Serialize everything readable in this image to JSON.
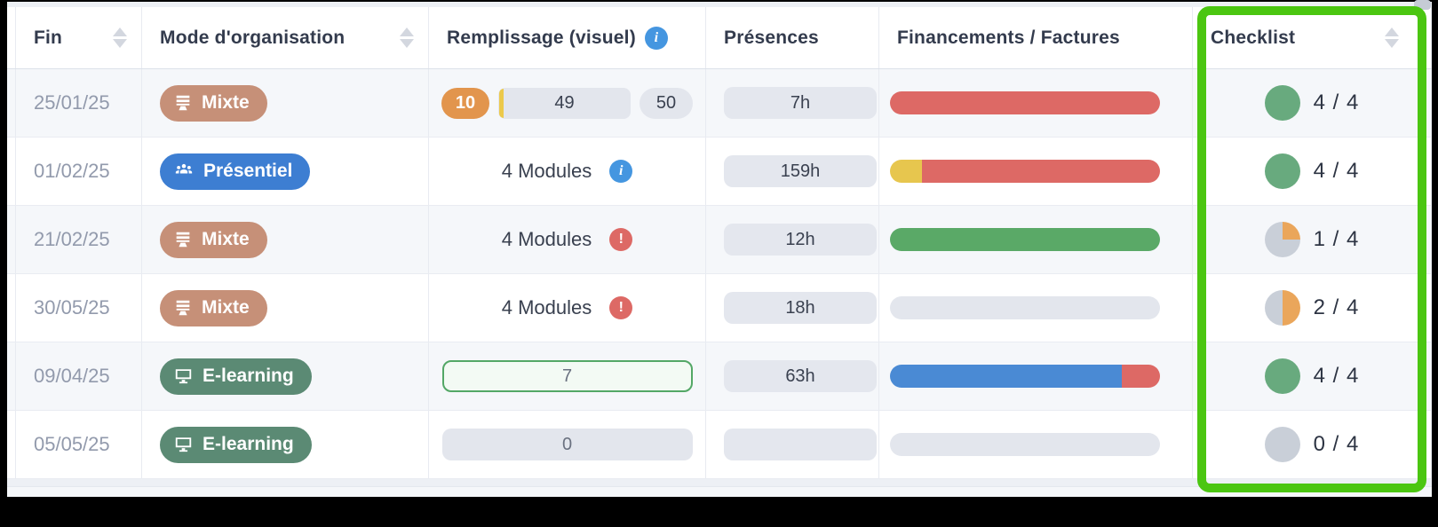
{
  "header": {
    "columns": [
      {
        "label": "Fin",
        "sortable": true
      },
      {
        "label": "Mode d'organisation",
        "sortable": true
      },
      {
        "label": "Remplissage (visuel)",
        "sortable": false,
        "info": true
      },
      {
        "label": "Présences",
        "sortable": false
      },
      {
        "label": "Financements / Factures",
        "sortable": false
      },
      {
        "label": "Checklist",
        "sortable": true,
        "highlighted": true
      }
    ]
  },
  "icons": {
    "info_glyph": "i",
    "alert_glyph": "!"
  },
  "colors": {
    "badge": {
      "mixte": "#c69078",
      "presentiel": "#3d7ed2",
      "elearning": "#5b8a74"
    },
    "funding": {
      "red": "#dd6965",
      "yellow": "#e7c64e",
      "green": "#5aa967",
      "gray": "#e3e6ed",
      "blue": "#4a8ad4"
    },
    "checklist": {
      "complete": "#68aa7e",
      "partial": "#eaa65b",
      "empty": "#c9cfd8"
    },
    "highlight": "#4bc611"
  },
  "rows": [
    {
      "fin": "25/01/25",
      "mode": {
        "label": "Mixte",
        "type": "mixte"
      },
      "remplissage": {
        "type": "capacity",
        "min": "10",
        "current": "49",
        "max": "50"
      },
      "presences": "7h",
      "financements": [
        {
          "color": "red",
          "pct": 100
        }
      ],
      "checklist": {
        "done": 4,
        "total": 4,
        "label": "4 / 4"
      }
    },
    {
      "fin": "01/02/25",
      "mode": {
        "label": "Présentiel",
        "type": "presentiel"
      },
      "remplissage": {
        "type": "modules",
        "label": "4 Modules",
        "icon": "info"
      },
      "presences": "159h",
      "financements": [
        {
          "color": "yellow",
          "pct": 12
        },
        {
          "color": "red",
          "pct": 88
        }
      ],
      "checklist": {
        "done": 4,
        "total": 4,
        "label": "4 / 4"
      }
    },
    {
      "fin": "21/02/25",
      "mode": {
        "label": "Mixte",
        "type": "mixte"
      },
      "remplissage": {
        "type": "modules",
        "label": "4 Modules",
        "icon": "alert"
      },
      "presences": "12h",
      "financements": [
        {
          "color": "green",
          "pct": 100
        }
      ],
      "checklist": {
        "done": 1,
        "total": 4,
        "label": "1 / 4"
      }
    },
    {
      "fin": "30/05/25",
      "mode": {
        "label": "Mixte",
        "type": "mixte"
      },
      "remplissage": {
        "type": "modules",
        "label": "4 Modules",
        "icon": "alert"
      },
      "presences": "18h",
      "financements": [
        {
          "color": "gray",
          "pct": 100
        }
      ],
      "checklist": {
        "done": 2,
        "total": 4,
        "label": "2 / 4"
      }
    },
    {
      "fin": "09/04/25",
      "mode": {
        "label": "E-learning",
        "type": "elearning"
      },
      "remplissage": {
        "type": "bar",
        "value": "7",
        "style": "success"
      },
      "presences": "63h",
      "financements": [
        {
          "color": "blue",
          "pct": 86
        },
        {
          "color": "red",
          "pct": 14
        }
      ],
      "checklist": {
        "done": 4,
        "total": 4,
        "label": "4 / 4"
      }
    },
    {
      "fin": "05/05/25",
      "mode": {
        "label": "E-learning",
        "type": "elearning"
      },
      "remplissage": {
        "type": "bar",
        "value": "0",
        "style": "empty"
      },
      "presences": "",
      "financements": [
        {
          "color": "gray",
          "pct": 100
        }
      ],
      "checklist": {
        "done": 0,
        "total": 4,
        "label": "0 / 4"
      }
    }
  ]
}
